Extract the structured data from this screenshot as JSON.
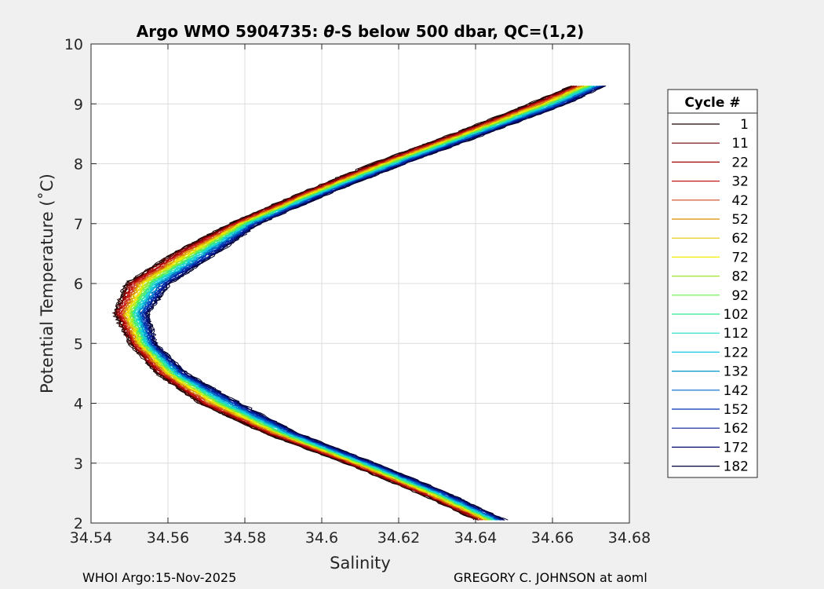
{
  "chart_data": {
    "type": "line",
    "title_prefix": "Argo WMO 5904735: ",
    "title_theta": "θ",
    "title_suffix": "-S below 500 dbar,  QC=(1,2)",
    "xlabel": "Salinity",
    "ylabel": "Potential Temperature (˚C)",
    "xlim": [
      34.54,
      34.68
    ],
    "ylim": [
      2,
      10
    ],
    "xticks": [
      "34.54",
      "34.56",
      "34.58",
      "34.6",
      "34.62",
      "34.64",
      "34.66",
      "34.68"
    ],
    "yticks": [
      "2",
      "3",
      "4",
      "5",
      "6",
      "7",
      "8",
      "9",
      "10"
    ],
    "grid": true,
    "legend_title": "Cycle #",
    "legend_position": "outside-right",
    "series": [
      {
        "name": "1",
        "color": "#1a0000"
      },
      {
        "name": "11",
        "color": "#6b0000"
      },
      {
        "name": "22",
        "color": "#a00000"
      },
      {
        "name": "32",
        "color": "#c81414"
      },
      {
        "name": "42",
        "color": "#d2461e"
      },
      {
        "name": "52",
        "color": "#d98c00"
      },
      {
        "name": "62",
        "color": "#e6c800"
      },
      {
        "name": "72",
        "color": "#f0f000"
      },
      {
        "name": "82",
        "color": "#a0e628"
      },
      {
        "name": "92",
        "color": "#64f046"
      },
      {
        "name": "102",
        "color": "#32e68c"
      },
      {
        "name": "112",
        "color": "#1edcc8"
      },
      {
        "name": "122",
        "color": "#14c8e6"
      },
      {
        "name": "132",
        "color": "#0096c8"
      },
      {
        "name": "142",
        "color": "#0064c8"
      },
      {
        "name": "152",
        "color": "#0032b4"
      },
      {
        "name": "162",
        "color": "#001e96"
      },
      {
        "name": "172",
        "color": "#000a6e"
      },
      {
        "name": "182",
        "color": "#000032"
      }
    ],
    "profile_envelope": [
      {
        "theta": 2.05,
        "s": [
          34.64,
          34.648
        ]
      },
      {
        "theta": 2.5,
        "s": [
          34.625,
          34.633
        ]
      },
      {
        "theta": 3.0,
        "s": [
          34.606,
          34.614
        ]
      },
      {
        "theta": 3.5,
        "s": [
          34.585,
          34.594
        ]
      },
      {
        "theta": 4.0,
        "s": [
          34.568,
          34.579
        ]
      },
      {
        "theta": 4.5,
        "s": [
          34.557,
          34.565
        ]
      },
      {
        "theta": 5.0,
        "s": [
          34.55,
          34.557
        ]
      },
      {
        "theta": 5.5,
        "s": [
          34.546,
          34.555
        ]
      },
      {
        "theta": 6.0,
        "s": [
          34.549,
          34.561
        ]
      },
      {
        "theta": 6.5,
        "s": [
          34.561,
          34.573
        ]
      },
      {
        "theta": 7.0,
        "s": [
          34.576,
          34.584
        ]
      },
      {
        "theta": 7.5,
        "s": [
          34.594,
          34.602
        ]
      },
      {
        "theta": 8.0,
        "s": [
          34.613,
          34.622
        ]
      },
      {
        "theta": 8.5,
        "s": [
          34.634,
          34.643
        ]
      },
      {
        "theta": 9.0,
        "s": [
          34.654,
          34.664
        ]
      },
      {
        "theta": 9.3,
        "s": [
          34.665,
          34.674
        ]
      }
    ]
  },
  "footer": {
    "left": "WHOI Argo:15-Nov-2025",
    "right": "GREGORY C. JOHNSON at aoml"
  }
}
